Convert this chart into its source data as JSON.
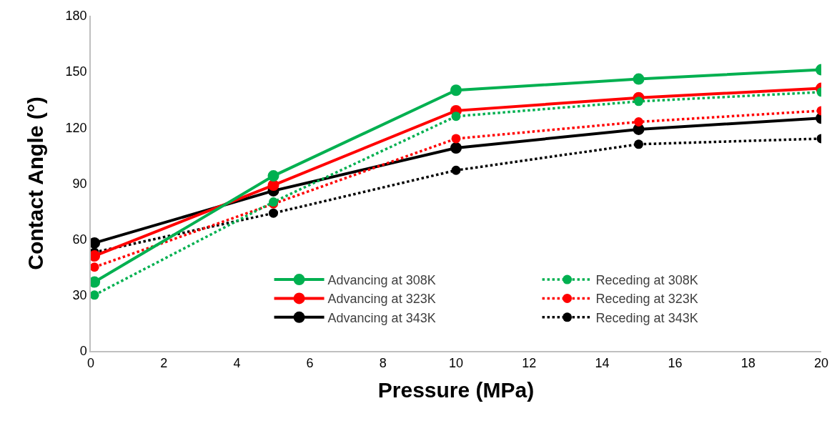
{
  "chart_data": {
    "type": "line",
    "xlabel": "Pressure (MPa)",
    "ylabel": "Contact Angle (°)",
    "x": [
      0.1,
      5,
      10,
      15,
      20
    ],
    "xlim": [
      0,
      20
    ],
    "xticks": [
      0,
      2,
      4,
      6,
      8,
      10,
      12,
      14,
      16,
      18,
      20
    ],
    "ylim": [
      0,
      180
    ],
    "yticks": [
      0,
      30,
      60,
      90,
      120,
      150,
      180
    ],
    "grid": false,
    "legend": "bottom right",
    "marker": "circle",
    "series": [
      {
        "name": "Advancing at 308K",
        "color": "#00b050",
        "line_style": "solid",
        "values": [
          37,
          94,
          140,
          146,
          151
        ]
      },
      {
        "name": "Receding at 308K",
        "color": "#00b050",
        "line_style": "dotted",
        "values": [
          30,
          80,
          126,
          134,
          139
        ]
      },
      {
        "name": "Advancing at 323K",
        "color": "#ff0000",
        "line_style": "solid",
        "values": [
          51,
          89,
          129,
          136,
          141
        ]
      },
      {
        "name": "Receding at 323K",
        "color": "#ff0000",
        "line_style": "dotted",
        "values": [
          45,
          79,
          114,
          123,
          129
        ]
      },
      {
        "name": "Advancing at 343K",
        "color": "#000000",
        "line_style": "solid",
        "values": [
          58,
          86,
          109,
          119,
          125
        ]
      },
      {
        "name": "Receding at 343K",
        "color": "#000000",
        "line_style": "dotted",
        "values": [
          53,
          74,
          97,
          111,
          114
        ]
      }
    ]
  }
}
